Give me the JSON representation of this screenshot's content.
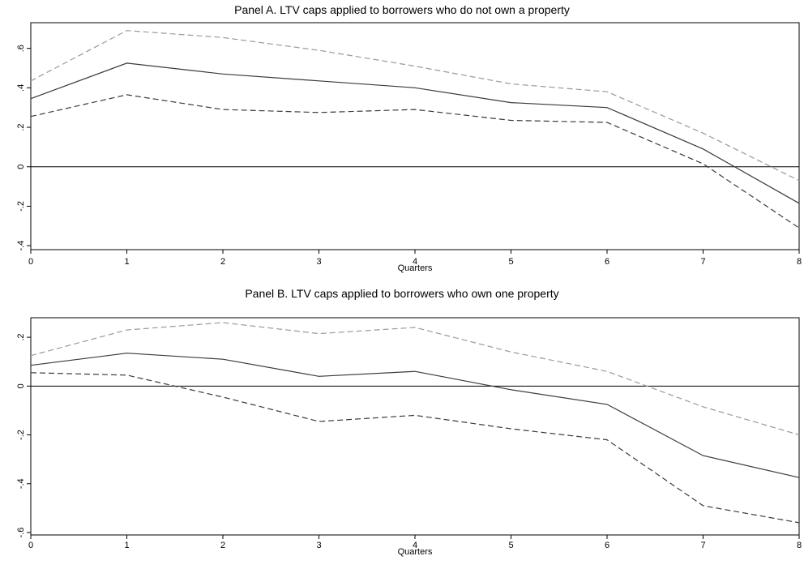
{
  "chart_data": [
    {
      "type": "line",
      "title": "Panel A. LTV caps applied to borrowers who do not own a property",
      "xlabel": "Quarters",
      "ylabel": "",
      "x": [
        0,
        1,
        2,
        3,
        4,
        5,
        6,
        7,
        8
      ],
      "xticks": [
        "0",
        "1",
        "2",
        "3",
        "4",
        "5",
        "6",
        "7",
        "8"
      ],
      "yticks": [
        {
          "v": -0.4,
          "label": "-.4"
        },
        {
          "v": -0.2,
          "label": "-.2"
        },
        {
          "v": 0,
          "label": "0"
        },
        {
          "v": 0.2,
          "label": ".2"
        },
        {
          "v": 0.4,
          "label": ".4"
        },
        {
          "v": 0.6,
          "label": ".6"
        }
      ],
      "xlim": [
        0,
        8
      ],
      "ylim": [
        -0.42,
        0.73
      ],
      "zero_line": true,
      "series": [
        {
          "style": "solid",
          "color": "#3a3a3a",
          "values": [
            0.345,
            0.525,
            0.47,
            0.435,
            0.4,
            0.325,
            0.3,
            0.09,
            -0.185
          ]
        },
        {
          "style": "dashed",
          "color": "#9a9a9a",
          "values": [
            0.435,
            0.69,
            0.655,
            0.59,
            0.51,
            0.42,
            0.38,
            0.17,
            -0.07
          ]
        },
        {
          "style": "dashed",
          "color": "#3a3a3a",
          "values": [
            0.255,
            0.365,
            0.29,
            0.275,
            0.29,
            0.235,
            0.225,
            0.015,
            -0.31
          ]
        }
      ]
    },
    {
      "type": "line",
      "title": "Panel B. LTV caps applied to borrowers who own one property",
      "xlabel": "Quarters",
      "ylabel": "",
      "x": [
        0,
        1,
        2,
        3,
        4,
        5,
        6,
        7,
        8
      ],
      "xticks": [
        "0",
        "1",
        "2",
        "3",
        "4",
        "5",
        "6",
        "7",
        "8"
      ],
      "yticks": [
        {
          "v": -0.6,
          "label": "-.6"
        },
        {
          "v": -0.4,
          "label": "-.4"
        },
        {
          "v": -0.2,
          "label": "-.2"
        },
        {
          "v": 0,
          "label": "0"
        },
        {
          "v": 0.2,
          "label": ".2"
        }
      ],
      "xlim": [
        0,
        8
      ],
      "ylim": [
        -0.61,
        0.28
      ],
      "zero_line": true,
      "series": [
        {
          "style": "solid",
          "color": "#3a3a3a",
          "values": [
            0.085,
            0.135,
            0.11,
            0.04,
            0.06,
            -0.015,
            -0.075,
            -0.285,
            -0.375
          ]
        },
        {
          "style": "dashed",
          "color": "#9a9a9a",
          "values": [
            0.125,
            0.23,
            0.26,
            0.215,
            0.24,
            0.14,
            0.06,
            -0.085,
            -0.2
          ]
        },
        {
          "style": "dashed",
          "color": "#3a3a3a",
          "values": [
            0.055,
            0.045,
            -0.045,
            -0.145,
            -0.12,
            -0.175,
            -0.22,
            -0.49,
            -0.56
          ]
        }
      ]
    }
  ]
}
